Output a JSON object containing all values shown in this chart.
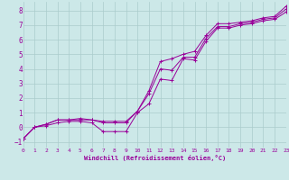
{
  "xlabel": "Windchill (Refroidissement éolien,°C)",
  "bg_color": "#cce8e8",
  "grid_color": "#aacccc",
  "line_color": "#990099",
  "xlim": [
    0,
    23
  ],
  "ylim": [
    -1.4,
    8.6
  ],
  "xticks": [
    0,
    1,
    2,
    3,
    4,
    5,
    6,
    7,
    8,
    9,
    10,
    11,
    12,
    13,
    14,
    15,
    16,
    17,
    18,
    19,
    20,
    21,
    22,
    23
  ],
  "yticks": [
    -1,
    0,
    1,
    2,
    3,
    4,
    5,
    6,
    7,
    8
  ],
  "line1_x": [
    0,
    1,
    2,
    3,
    4,
    5,
    6,
    7,
    8,
    9,
    10,
    11,
    12,
    13,
    14,
    15,
    16,
    17,
    18,
    19,
    20,
    21,
    22,
    23
  ],
  "line1_y": [
    -0.8,
    0.0,
    0.2,
    0.5,
    0.5,
    0.6,
    0.5,
    0.4,
    0.4,
    0.4,
    1.1,
    2.5,
    4.5,
    4.7,
    5.0,
    5.2,
    6.3,
    7.1,
    7.1,
    7.2,
    7.3,
    7.5,
    7.6,
    8.3
  ],
  "line2_x": [
    0,
    1,
    2,
    3,
    4,
    5,
    6,
    7,
    8,
    9,
    10,
    11,
    12,
    13,
    14,
    15,
    16,
    17,
    18,
    19,
    20,
    21,
    22,
    23
  ],
  "line2_y": [
    -0.8,
    0.0,
    0.2,
    0.5,
    0.5,
    0.5,
    0.5,
    0.3,
    0.3,
    0.3,
    1.1,
    2.3,
    4.0,
    3.9,
    4.8,
    4.8,
    6.1,
    6.9,
    6.9,
    7.1,
    7.2,
    7.4,
    7.5,
    8.1
  ],
  "line3_x": [
    0,
    1,
    2,
    3,
    4,
    5,
    6,
    7,
    8,
    9,
    10,
    11,
    12,
    13,
    14,
    15,
    16,
    17,
    18,
    19,
    20,
    21,
    22,
    23
  ],
  "line3_y": [
    -0.8,
    0.0,
    0.1,
    0.3,
    0.4,
    0.4,
    0.3,
    -0.3,
    -0.3,
    -0.3,
    1.0,
    1.6,
    3.3,
    3.2,
    4.7,
    4.6,
    5.9,
    6.8,
    6.8,
    7.0,
    7.1,
    7.3,
    7.4,
    7.9
  ]
}
